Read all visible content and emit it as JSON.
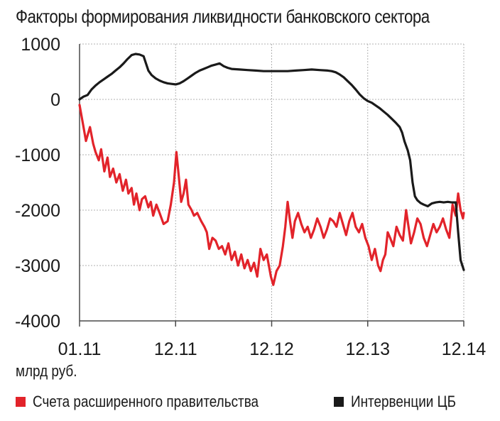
{
  "colors": {
    "government": "#e2232a",
    "cb": "#1a1a1a",
    "grid": "#b0b0b0",
    "axis": "#4a4a4a"
  },
  "chart_data": {
    "type": "line",
    "title": "Факторы формирования ликвидности банковского сектора",
    "ylabel": "млрд руб.",
    "ylim": [
      -4000,
      1000
    ],
    "yticks": [
      "1000",
      "0",
      "-1000",
      "-2000",
      "-3000",
      "-4000"
    ],
    "ytick_values": [
      1000,
      0,
      -1000,
      -2000,
      -3000,
      -4000
    ],
    "xticks": [
      "01.11",
      "12.11",
      "12.12",
      "12.13",
      "12.14"
    ],
    "xlim": [
      0,
      48
    ],
    "grid": true,
    "legend_position": "bottom",
    "series": [
      {
        "name": "Счета расширенного правительства",
        "color": "#e2232a",
        "points": [
          [
            0,
            -100
          ],
          [
            0.5,
            -500
          ],
          [
            0.8,
            -750
          ],
          [
            1.3,
            -500
          ],
          [
            1.7,
            -800
          ],
          [
            2,
            -950
          ],
          [
            2.4,
            -1100
          ],
          [
            2.7,
            -900
          ],
          [
            3.1,
            -1300
          ],
          [
            3.5,
            -1050
          ],
          [
            3.8,
            -1400
          ],
          [
            4.2,
            -1250
          ],
          [
            4.6,
            -1500
          ],
          [
            5,
            -1350
          ],
          [
            5.4,
            -1650
          ],
          [
            5.8,
            -1450
          ],
          [
            6.1,
            -1700
          ],
          [
            6.5,
            -1600
          ],
          [
            6.8,
            -1900
          ],
          [
            7.1,
            -1700
          ],
          [
            7.5,
            -2000
          ],
          [
            7.8,
            -1800
          ],
          [
            8.2,
            -1750
          ],
          [
            8.6,
            -1950
          ],
          [
            8.9,
            -1850
          ],
          [
            9.2,
            -2100
          ],
          [
            9.6,
            -1900
          ],
          [
            10,
            -2050
          ],
          [
            10.5,
            -2250
          ],
          [
            11,
            -2200
          ],
          [
            11.4,
            -1900
          ],
          [
            11.8,
            -1500
          ],
          [
            12.1,
            -950
          ],
          [
            12.4,
            -1400
          ],
          [
            12.7,
            -1850
          ],
          [
            13,
            -1700
          ],
          [
            13.3,
            -1450
          ],
          [
            13.6,
            -1900
          ],
          [
            14,
            -2000
          ],
          [
            14.3,
            -2100
          ],
          [
            14.7,
            -2050
          ],
          [
            15.2,
            -2200
          ],
          [
            15.6,
            -2300
          ],
          [
            15.9,
            -2400
          ],
          [
            16.2,
            -2700
          ],
          [
            16.6,
            -2500
          ],
          [
            17,
            -2550
          ],
          [
            17.4,
            -2700
          ],
          [
            17.8,
            -2650
          ],
          [
            18.2,
            -2800
          ],
          [
            18.6,
            -2600
          ],
          [
            19,
            -2900
          ],
          [
            19.4,
            -2750
          ],
          [
            19.8,
            -3000
          ],
          [
            20.2,
            -2800
          ],
          [
            20.6,
            -3050
          ],
          [
            21,
            -2900
          ],
          [
            21.4,
            -3100
          ],
          [
            21.8,
            -2950
          ],
          [
            22.2,
            -3200
          ],
          [
            22.6,
            -2700
          ],
          [
            23,
            -2900
          ],
          [
            23.4,
            -2800
          ],
          [
            23.9,
            -3200
          ],
          [
            24.2,
            -3350
          ],
          [
            24.6,
            -3100
          ],
          [
            25,
            -3000
          ],
          [
            25.4,
            -2650
          ],
          [
            25.7,
            -2300
          ],
          [
            26,
            -1850
          ],
          [
            26.3,
            -2200
          ],
          [
            26.6,
            -2500
          ],
          [
            26.9,
            -2200
          ],
          [
            27.3,
            -2050
          ],
          [
            27.7,
            -2250
          ],
          [
            28.1,
            -2400
          ],
          [
            28.5,
            -2300
          ],
          [
            28.9,
            -2500
          ],
          [
            29.3,
            -2350
          ],
          [
            29.7,
            -2150
          ],
          [
            30.1,
            -2300
          ],
          [
            30.5,
            -2500
          ],
          [
            30.9,
            -2350
          ],
          [
            31.3,
            -2150
          ],
          [
            31.7,
            -2200
          ],
          [
            32.1,
            -2300
          ],
          [
            32.5,
            -2050
          ],
          [
            32.9,
            -2250
          ],
          [
            33.3,
            -2450
          ],
          [
            33.7,
            -2200
          ],
          [
            34.1,
            -2050
          ],
          [
            34.5,
            -2300
          ],
          [
            34.9,
            -2400
          ],
          [
            35.3,
            -2250
          ],
          [
            35.7,
            -2500
          ],
          [
            36.1,
            -2650
          ],
          [
            36.5,
            -2900
          ],
          [
            36.9,
            -2700
          ],
          [
            37.3,
            -3000
          ],
          [
            37.6,
            -3100
          ],
          [
            37.9,
            -2900
          ],
          [
            38.2,
            -2800
          ],
          [
            38.5,
            -2400
          ],
          [
            38.8,
            -2500
          ],
          [
            39.2,
            -2650
          ],
          [
            39.6,
            -2300
          ],
          [
            40,
            -2450
          ],
          [
            40.4,
            -2550
          ],
          [
            40.8,
            -2000
          ],
          [
            41.1,
            -2300
          ],
          [
            41.4,
            -2600
          ],
          [
            41.8,
            -2400
          ],
          [
            42.2,
            -2150
          ],
          [
            42.6,
            -2250
          ],
          [
            43,
            -2500
          ],
          [
            43.4,
            -2650
          ],
          [
            43.8,
            -2450
          ],
          [
            44.2,
            -2250
          ],
          [
            44.6,
            -2400
          ],
          [
            45,
            -2300
          ],
          [
            45.4,
            -2150
          ],
          [
            45.8,
            -2350
          ],
          [
            46.2,
            -2500
          ],
          [
            46.6,
            -1900
          ],
          [
            47,
            -2100
          ],
          [
            47.3,
            -1700
          ],
          [
            47.6,
            -2000
          ],
          [
            47.9,
            -2150
          ],
          [
            48,
            -2050
          ]
        ]
      },
      {
        "name": "Интервенции ЦБ",
        "color": "#1a1a1a",
        "points": [
          [
            0,
            0
          ],
          [
            0.5,
            50
          ],
          [
            1,
            80
          ],
          [
            1.5,
            180
          ],
          [
            2,
            250
          ],
          [
            2.5,
            310
          ],
          [
            3,
            360
          ],
          [
            3.5,
            410
          ],
          [
            4,
            460
          ],
          [
            4.5,
            520
          ],
          [
            5,
            580
          ],
          [
            5.5,
            650
          ],
          [
            6,
            730
          ],
          [
            6.5,
            800
          ],
          [
            7,
            820
          ],
          [
            7.5,
            810
          ],
          [
            8,
            780
          ],
          [
            8.3,
            650
          ],
          [
            8.6,
            520
          ],
          [
            9,
            440
          ],
          [
            9.5,
            380
          ],
          [
            10,
            340
          ],
          [
            10.5,
            310
          ],
          [
            11,
            290
          ],
          [
            11.5,
            280
          ],
          [
            12,
            270
          ],
          [
            12.5,
            290
          ],
          [
            13,
            330
          ],
          [
            13.5,
            380
          ],
          [
            14,
            430
          ],
          [
            14.5,
            480
          ],
          [
            15,
            520
          ],
          [
            15.5,
            550
          ],
          [
            16,
            580
          ],
          [
            16.5,
            610
          ],
          [
            17,
            630
          ],
          [
            17.5,
            650
          ],
          [
            18,
            600
          ],
          [
            18.5,
            570
          ],
          [
            19,
            550
          ],
          [
            20,
            540
          ],
          [
            21,
            530
          ],
          [
            22,
            520
          ],
          [
            23,
            510
          ],
          [
            24,
            510
          ],
          [
            25,
            510
          ],
          [
            26,
            510
          ],
          [
            27,
            520
          ],
          [
            28,
            530
          ],
          [
            29,
            540
          ],
          [
            30,
            530
          ],
          [
            31,
            520
          ],
          [
            31.5,
            510
          ],
          [
            32,
            490
          ],
          [
            32.5,
            450
          ],
          [
            33,
            400
          ],
          [
            33.5,
            330
          ],
          [
            34,
            260
          ],
          [
            34.5,
            180
          ],
          [
            35,
            90
          ],
          [
            35.5,
            20
          ],
          [
            36,
            -30
          ],
          [
            36.5,
            -60
          ],
          [
            37,
            -110
          ],
          [
            37.5,
            -160
          ],
          [
            38,
            -220
          ],
          [
            38.5,
            -280
          ],
          [
            39,
            -350
          ],
          [
            39.5,
            -420
          ],
          [
            40,
            -500
          ],
          [
            40.3,
            -600
          ],
          [
            40.6,
            -760
          ],
          [
            41,
            -920
          ],
          [
            41.3,
            -1100
          ],
          [
            41.6,
            -1500
          ],
          [
            41.9,
            -1750
          ],
          [
            42.2,
            -1820
          ],
          [
            42.6,
            -1870
          ],
          [
            43,
            -1900
          ],
          [
            43.5,
            -1930
          ],
          [
            44,
            -1880
          ],
          [
            44.5,
            -1860
          ],
          [
            45,
            -1850
          ],
          [
            45.5,
            -1860
          ],
          [
            46,
            -1850
          ],
          [
            46.5,
            -1860
          ],
          [
            47,
            -1860
          ],
          [
            47.3,
            -2400
          ],
          [
            47.6,
            -2900
          ],
          [
            48,
            -3080
          ]
        ]
      }
    ]
  }
}
